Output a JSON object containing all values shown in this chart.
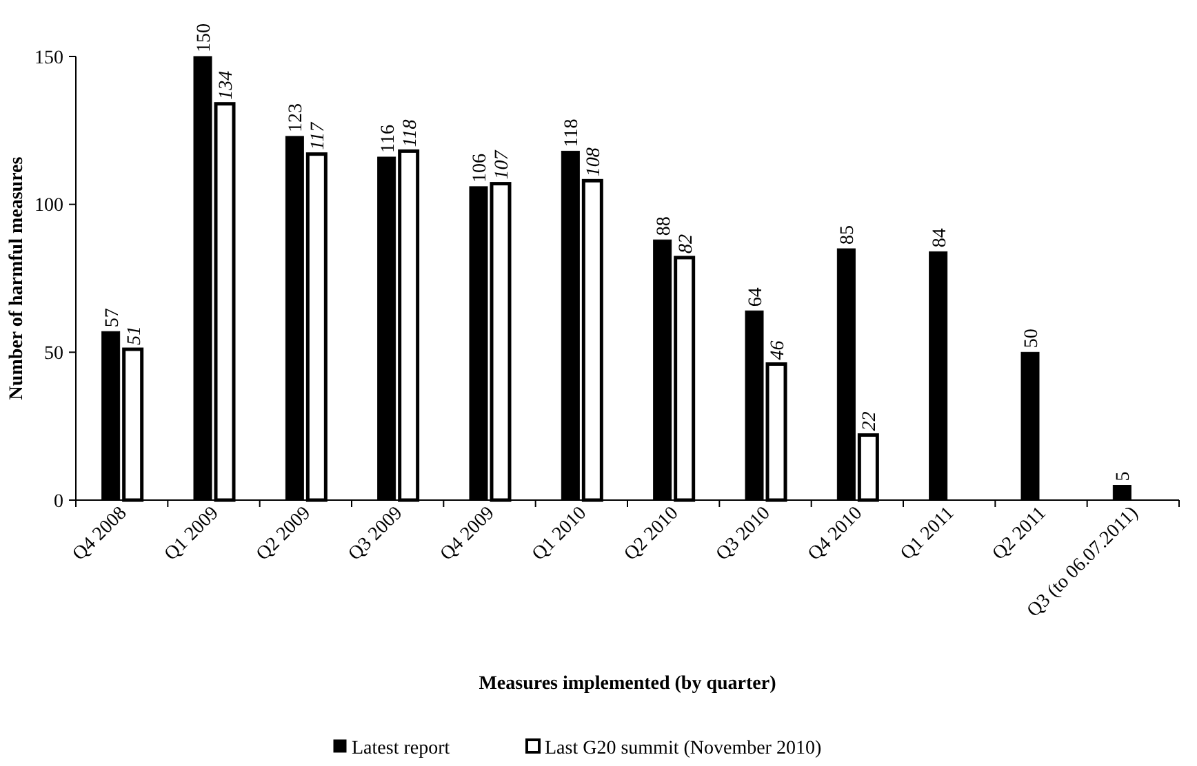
{
  "chart_data": {
    "type": "bar",
    "xlabel": "Measures implemented (by quarter)",
    "ylabel": "Number of harmful measures",
    "categories": [
      "Q4 2008",
      "Q1 2009",
      "Q2 2009",
      "Q3 2009",
      "Q4 2009",
      "Q1 2010",
      "Q2 2010",
      "Q3 2010",
      "Q4 2010",
      "Q1 2011",
      "Q2 2011",
      "Q3 (to 06.07.2011)"
    ],
    "series": [
      {
        "name": "Latest report",
        "color": "#000000",
        "values": [
          57,
          150,
          123,
          116,
          106,
          118,
          88,
          64,
          85,
          84,
          50,
          5
        ]
      },
      {
        "name": "Last G20 summit (November 2010)",
        "color": "#ffffff",
        "values": [
          51,
          134,
          117,
          118,
          107,
          108,
          82,
          46,
          22,
          null,
          null,
          null
        ]
      }
    ],
    "ylim": [
      0,
      150
    ],
    "yticks": [
      0,
      50,
      100,
      150
    ],
    "data_labels": true,
    "legend": "bottom"
  }
}
